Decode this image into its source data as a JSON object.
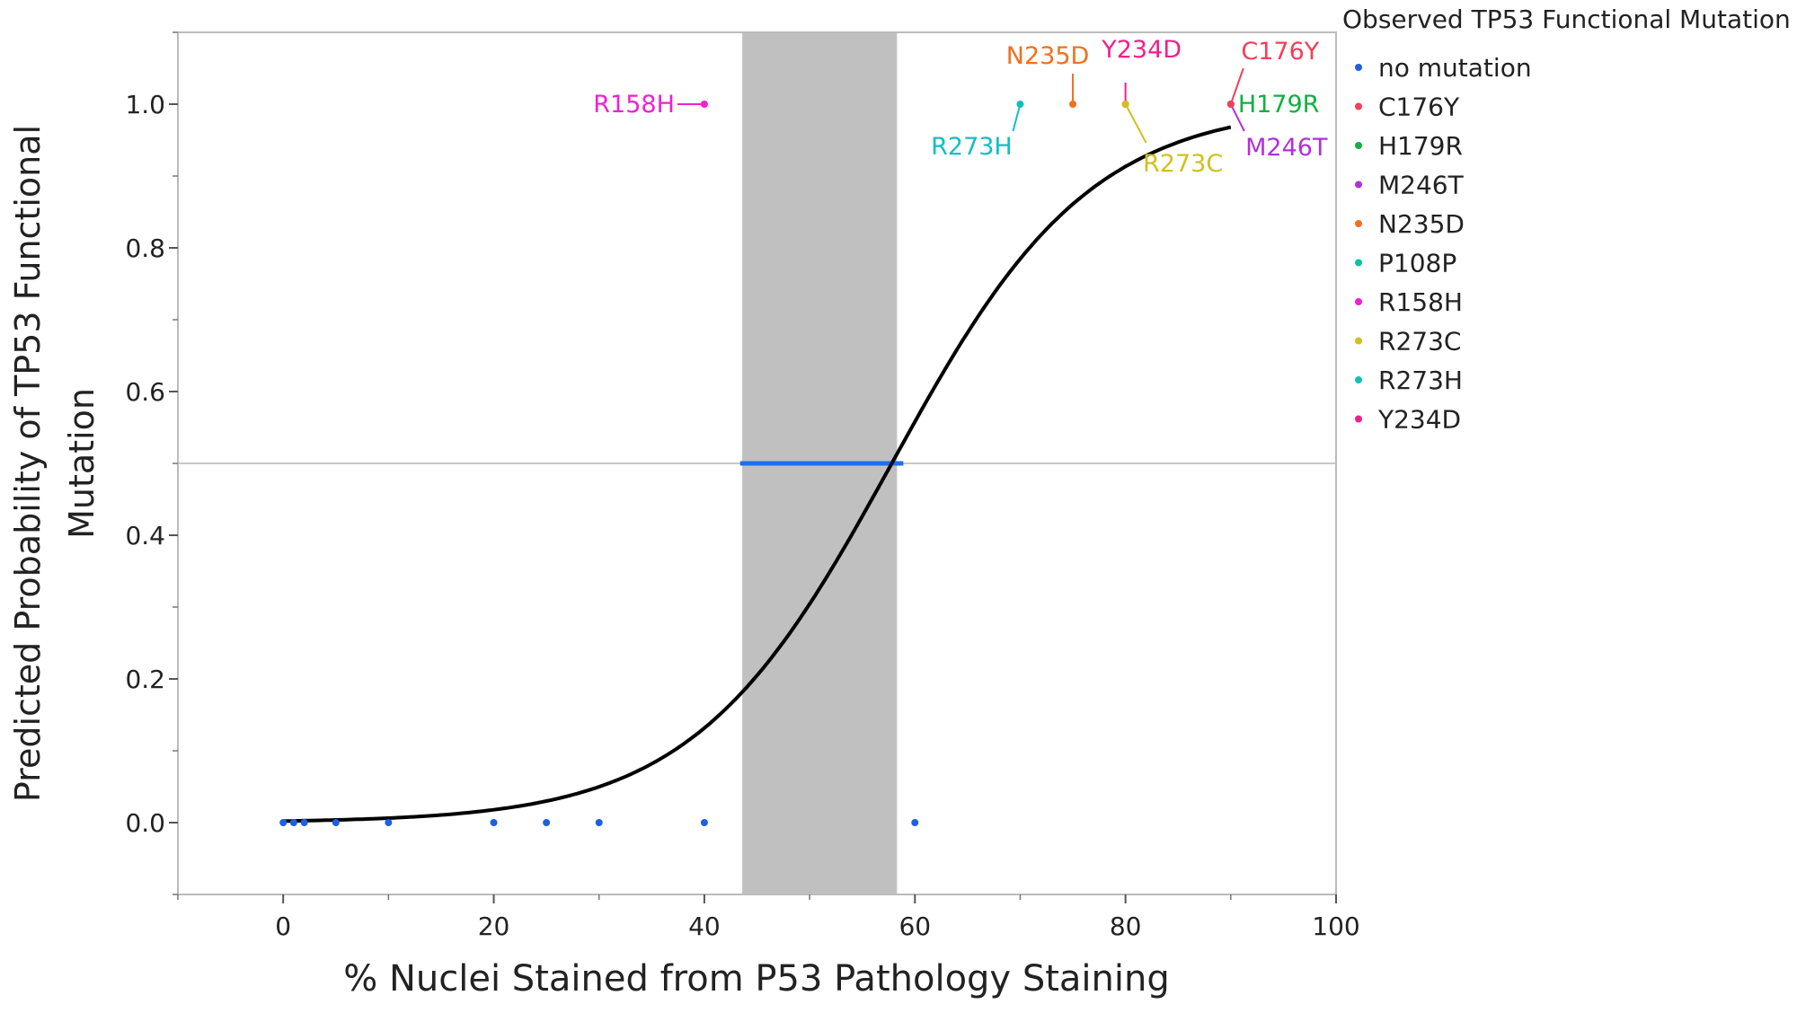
{
  "chart_data": {
    "type": "scatter",
    "xlabel": "% Nuclei Stained from P53 Pathology Staining",
    "ylabel_lines": [
      "Predicted Probability of TP53 Functional",
      "Mutation"
    ],
    "xlim": [
      -10,
      100
    ],
    "ylim": [
      -0.1,
      1.1
    ],
    "xticks": [
      0,
      20,
      40,
      60,
      80,
      100
    ],
    "yticks": [
      0.0,
      0.2,
      0.4,
      0.6,
      0.8,
      1.0
    ],
    "ytick_labels": [
      "0.0",
      "0.2",
      "0.4",
      "0.6",
      "0.8",
      "1.0"
    ],
    "grid": false,
    "legend": {
      "title": "Observed TP53 Functional Mutation",
      "position": "right",
      "entries": [
        {
          "name": "no mutation",
          "color": "#1f5fe0"
        },
        {
          "name": "C176Y",
          "color": "#f0405a"
        },
        {
          "name": "H179R",
          "color": "#10b040"
        },
        {
          "name": "M246T",
          "color": "#b030e0"
        },
        {
          "name": "N235D",
          "color": "#f07020"
        },
        {
          "name": "P108P",
          "color": "#10c0a0"
        },
        {
          "name": "R158H",
          "color": "#f020d0"
        },
        {
          "name": "R273C",
          "color": "#d0c020"
        },
        {
          "name": "R273H",
          "color": "#10c0c0"
        },
        {
          "name": "Y234D",
          "color": "#f0208a"
        }
      ]
    },
    "points": [
      {
        "x": 0,
        "y": 0,
        "group": "no mutation"
      },
      {
        "x": 1,
        "y": 0,
        "group": "no mutation"
      },
      {
        "x": 2,
        "y": 0,
        "group": "no mutation"
      },
      {
        "x": 5,
        "y": 0,
        "group": "no mutation"
      },
      {
        "x": 10,
        "y": 0,
        "group": "no mutation"
      },
      {
        "x": 20,
        "y": 0,
        "group": "no mutation"
      },
      {
        "x": 25,
        "y": 0,
        "group": "no mutation"
      },
      {
        "x": 30,
        "y": 0,
        "group": "no mutation"
      },
      {
        "x": 40,
        "y": 0,
        "group": "no mutation"
      },
      {
        "x": 60,
        "y": 0,
        "group": "no mutation"
      },
      {
        "x": 40,
        "y": 1,
        "group": "R158H",
        "label": "R158H"
      },
      {
        "x": 70,
        "y": 1,
        "group": "R273H",
        "label": "R273H"
      },
      {
        "x": 75,
        "y": 1,
        "group": "N235D",
        "label": "N235D"
      },
      {
        "x": 80,
        "y": 1,
        "group": "Y234D",
        "label": "Y234D"
      },
      {
        "x": 80,
        "y": 1,
        "group": "R273C",
        "label": "R273C"
      },
      {
        "x": 90,
        "y": 1,
        "group": "M246T",
        "label": "M246T"
      },
      {
        "x": 90,
        "y": 1,
        "group": "H179R",
        "label": "H179R"
      },
      {
        "x": 90,
        "y": 1,
        "group": "C176Y",
        "label": "C176Y"
      }
    ],
    "fit_curve": {
      "type": "logistic",
      "x50": 57.8,
      "slope": 0.106,
      "x_range": [
        0,
        90
      ],
      "color": "#000000"
    },
    "shaded_band": {
      "x_range": [
        43.6,
        58.3
      ],
      "color": "#c0c0c0"
    },
    "reference_line": {
      "y": 0.5,
      "color": "#c8c8c8"
    },
    "interval_line": {
      "y": 0.5,
      "x_range": [
        43.4,
        58.9
      ],
      "color": "#1f6fe8"
    }
  }
}
